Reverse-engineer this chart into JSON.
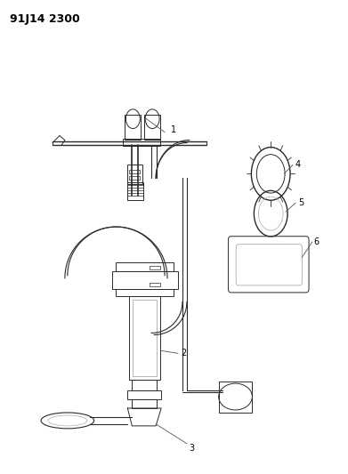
{
  "title": "91J14 2300",
  "bg_color": "#ffffff",
  "line_color": "#2a2a2a",
  "label_color": "#000000",
  "gray": "#888888",
  "light_gray": "#cccccc",
  "title_fontsize": 9,
  "label_fontsize": 7,
  "fig_width": 3.91,
  "fig_height": 5.33,
  "dpi": 100
}
